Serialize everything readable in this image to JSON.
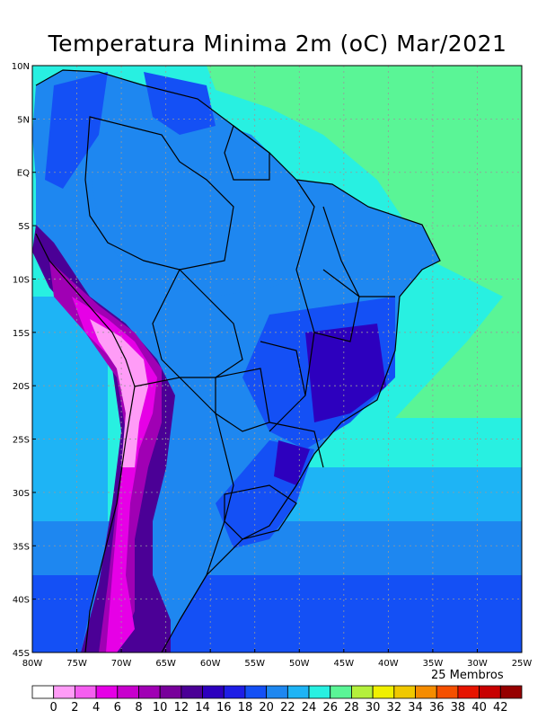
{
  "title": "Temperatura Minima 2m (oC) Mar/2021",
  "members": "25 Membros",
  "lat_labels": [
    "10N",
    "5N",
    "EQ",
    "5S",
    "10S",
    "15S",
    "20S",
    "25S",
    "30S",
    "35S",
    "40S",
    "45S"
  ],
  "lon_labels": [
    "80W",
    "75W",
    "70W",
    "65W",
    "60W",
    "55W",
    "50W",
    "45W",
    "40W",
    "35W",
    "30W",
    "25W"
  ],
  "colorbar": {
    "labels": [
      "0",
      "2",
      "4",
      "6",
      "8",
      "10",
      "12",
      "14",
      "16",
      "18",
      "20",
      "22",
      "24",
      "26",
      "28",
      "30",
      "32",
      "34",
      "36",
      "38",
      "40",
      "42"
    ],
    "colors": [
      "#ffffff",
      "#ff9cf7",
      "#f55ef0",
      "#e600e6",
      "#c800cd",
      "#a000b4",
      "#78009b",
      "#4b0096",
      "#2d00be",
      "#1e1ee6",
      "#1450f5",
      "#1e87f0",
      "#1eb4f5",
      "#28f0e1",
      "#5af596",
      "#b4f03c",
      "#f0f000",
      "#f0c800",
      "#f58c00",
      "#f55000",
      "#e61400",
      "#c80000",
      "#960000"
    ]
  },
  "palette": {
    "ocean_tropical": "#5af596",
    "ocean_mid": "#28f0e1",
    "ocean_cool": "#1eb4f5",
    "ocean_cold": "#1e87f0",
    "ocean_colder": "#1450f5",
    "amazon": "#1e87f0",
    "land_cool": "#1450f5",
    "highland": "#2d00be",
    "andes_low": "#4b0096",
    "andes_mid": "#a000b4",
    "andes_high": "#e600e6",
    "andes_peak": "#ff9cf7"
  }
}
